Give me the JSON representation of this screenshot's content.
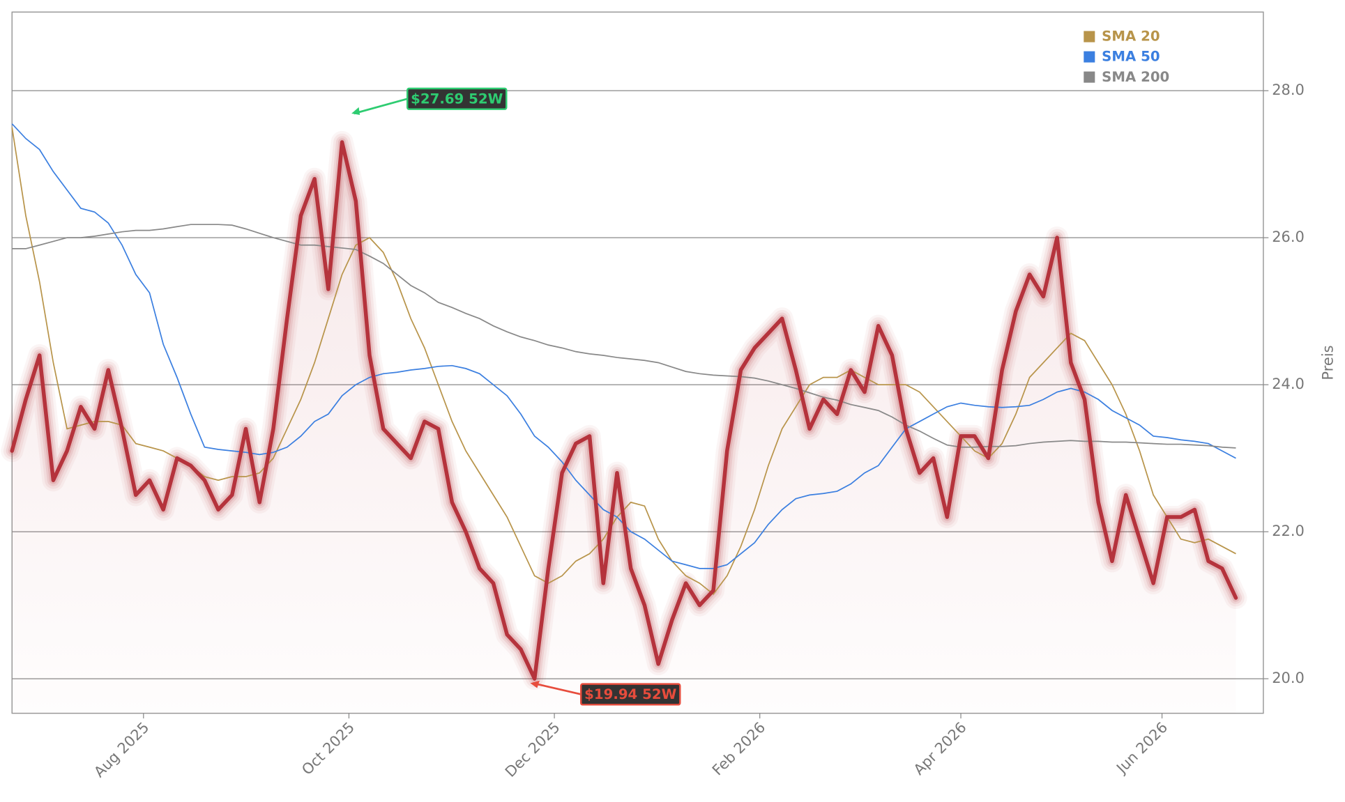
{
  "chart_data": {
    "type": "line",
    "y_label": "Preis",
    "xlim": [
      0,
      91
    ],
    "xticks": [
      {
        "value": 9.56,
        "label": "Aug 2025"
      },
      {
        "value": 24.5,
        "label": "Oct 2025"
      },
      {
        "value": 39.44,
        "label": "Dec 2025"
      },
      {
        "value": 54.38,
        "label": "Feb 2026"
      },
      {
        "value": 69,
        "label": "Apr 2026"
      },
      {
        "value": 83.63,
        "label": "Jun 2026"
      }
    ],
    "ylim": [
      19.53,
      29.07
    ],
    "yticks": [
      {
        "value": 20,
        "label": "20.0"
      },
      {
        "value": 22,
        "label": "22.0"
      },
      {
        "value": 24,
        "label": "24.0"
      },
      {
        "value": 26,
        "label": "26.0"
      },
      {
        "value": 28,
        "label": "28.0"
      }
    ],
    "grid": true,
    "legend": "upper right",
    "color": "#b5333c",
    "values": [
      23.1,
      23.8,
      24.4,
      22.7,
      23.1,
      23.7,
      23.4,
      24.2,
      23.4,
      22.5,
      22.7,
      22.3,
      23.0,
      22.9,
      22.7,
      22.3,
      22.5,
      23.4,
      22.4,
      23.4,
      24.9,
      26.3,
      26.8,
      25.3,
      27.3,
      26.5,
      24.4,
      23.4,
      23.2,
      23.0,
      23.5,
      23.4,
      22.4,
      22.0,
      21.5,
      21.3,
      20.6,
      20.4,
      20.0,
      21.5,
      22.8,
      23.2,
      23.3,
      21.3,
      22.8,
      21.5,
      21.0,
      20.2,
      20.8,
      21.3,
      21.0,
      21.2,
      23.1,
      24.2,
      24.5,
      24.7,
      24.9,
      24.2,
      23.4,
      23.8,
      23.6,
      24.2,
      23.9,
      24.8,
      24.4,
      23.4,
      22.8,
      23.0,
      22.2,
      23.3,
      23.3,
      23.0,
      24.2,
      25.0,
      25.5,
      25.2,
      26.0,
      24.3,
      23.8,
      22.4,
      21.6,
      22.5,
      21.9,
      21.3,
      22.2,
      22.2,
      22.3,
      21.6,
      21.5,
      21.1
    ],
    "series": [
      {
        "name": "SMA 20",
        "color": "#b8944a",
        "values": [
          27.5,
          26.3,
          25.4,
          24.3,
          23.4,
          23.45,
          23.5,
          23.5,
          23.45,
          23.2,
          23.15,
          23.1,
          23.0,
          22.9,
          22.75,
          22.7,
          22.75,
          22.75,
          22.8,
          23.0,
          23.4,
          23.8,
          24.3,
          24.9,
          25.5,
          25.9,
          26.0,
          25.8,
          25.4,
          24.9,
          24.5,
          24.0,
          23.5,
          23.1,
          22.8,
          22.5,
          22.2,
          21.8,
          21.4,
          21.3,
          21.4,
          21.6,
          21.7,
          21.9,
          22.2,
          22.4,
          22.35,
          21.9,
          21.6,
          21.4,
          21.3,
          21.15,
          21.4,
          21.8,
          22.3,
          22.9,
          23.4,
          23.7,
          24.0,
          24.1,
          24.1,
          24.2,
          24.1,
          24.0,
          24.0,
          24.0,
          23.9,
          23.7,
          23.5,
          23.3,
          23.1,
          23.0,
          23.2,
          23.6,
          24.1,
          24.3,
          24.5,
          24.7,
          24.6,
          24.3,
          24.0,
          23.6,
          23.1,
          22.5,
          22.2,
          21.9,
          21.85,
          21.9,
          21.8,
          21.7
        ]
      },
      {
        "name": "SMA 50",
        "color": "#3b7fe0",
        "values": [
          27.55,
          27.35,
          27.2,
          26.9,
          26.65,
          26.4,
          26.35,
          26.2,
          25.9,
          25.5,
          25.25,
          24.55,
          24.1,
          23.6,
          23.15,
          23.12,
          23.1,
          23.08,
          23.05,
          23.08,
          23.15,
          23.3,
          23.5,
          23.6,
          23.85,
          24.0,
          24.1,
          24.15,
          24.17,
          24.2,
          24.22,
          24.25,
          24.26,
          24.22,
          24.15,
          24.0,
          23.85,
          23.6,
          23.3,
          23.15,
          22.95,
          22.7,
          22.5,
          22.3,
          22.2,
          22.0,
          21.9,
          21.75,
          21.6,
          21.55,
          21.5,
          21.5,
          21.55,
          21.7,
          21.85,
          22.1,
          22.3,
          22.45,
          22.5,
          22.52,
          22.55,
          22.65,
          22.8,
          22.9,
          23.15,
          23.4,
          23.5,
          23.6,
          23.7,
          23.75,
          23.72,
          23.7,
          23.69,
          23.7,
          23.72,
          23.8,
          23.9,
          23.95,
          23.9,
          23.8,
          23.65,
          23.55,
          23.45,
          23.3,
          23.28,
          23.25,
          23.23,
          23.2,
          23.1,
          23.0
        ]
      },
      {
        "name": "SMA 200",
        "color": "#888888",
        "values": [
          25.85,
          25.85,
          25.9,
          25.95,
          26.0,
          26.0,
          26.02,
          26.05,
          26.08,
          26.1,
          26.1,
          26.12,
          26.15,
          26.18,
          26.18,
          26.18,
          26.17,
          26.12,
          26.06,
          26.0,
          25.95,
          25.9,
          25.9,
          25.88,
          25.86,
          25.84,
          25.75,
          25.65,
          25.5,
          25.35,
          25.25,
          25.12,
          25.05,
          24.97,
          24.9,
          24.8,
          24.72,
          24.65,
          24.6,
          24.54,
          24.5,
          24.45,
          24.42,
          24.4,
          24.37,
          24.35,
          24.33,
          24.3,
          24.24,
          24.18,
          24.15,
          24.13,
          24.12,
          24.11,
          24.09,
          24.05,
          24.0,
          23.95,
          23.89,
          23.83,
          23.79,
          23.73,
          23.69,
          23.65,
          23.56,
          23.45,
          23.37,
          23.27,
          23.18,
          23.15,
          23.15,
          23.16,
          23.16,
          23.17,
          23.2,
          23.22,
          23.23,
          23.24,
          23.23,
          23.23,
          23.22,
          23.22,
          23.21,
          23.2,
          23.19,
          23.19,
          23.18,
          23.17,
          23.15,
          23.14
        ]
      }
    ],
    "annotations": [
      {
        "text": "$27.69 52W",
        "x": 24.5,
        "y": 27.69,
        "color": "#2ecc71"
      },
      {
        "text": "$19.94 52W",
        "x": 37.5,
        "y": 19.94,
        "color": "#e74c3c"
      }
    ]
  }
}
